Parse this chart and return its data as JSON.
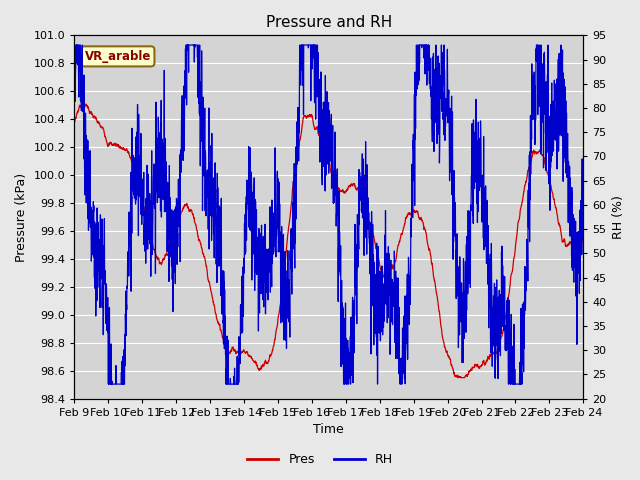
{
  "title": "Pressure and RH",
  "xlabel": "Time",
  "ylabel_left": "Pressure (kPa)",
  "ylabel_right": "RH (%)",
  "ylim_left": [
    98.4,
    101.0
  ],
  "ylim_right": [
    20,
    95
  ],
  "yticks_left": [
    98.4,
    98.6,
    98.8,
    99.0,
    99.2,
    99.4,
    99.6,
    99.8,
    100.0,
    100.2,
    100.4,
    100.6,
    100.8,
    101.0
  ],
  "yticks_right": [
    20,
    25,
    30,
    35,
    40,
    45,
    50,
    55,
    60,
    65,
    70,
    75,
    80,
    85,
    90,
    95
  ],
  "x_tick_labels": [
    "Feb 9",
    "Feb 10",
    "Feb 11",
    "Feb 12",
    "Feb 13",
    "Feb 14",
    "Feb 15",
    "Feb 16",
    "Feb 17",
    "Feb 18",
    "Feb 19",
    "Feb 20",
    "Feb 21",
    "Feb 22",
    "Feb 23",
    "Feb 24"
  ],
  "annotation_text": "VR_arable",
  "line_color_pres": "#cc0000",
  "line_color_rh": "#0000cc",
  "legend_label_pres": "Pres",
  "legend_label_rh": "RH",
  "fig_bg_color": "#e8e8e8",
  "plot_bg_color": "#d4d4d4",
  "grid_color": "#ffffff",
  "title_fontsize": 11,
  "axis_label_fontsize": 9,
  "tick_fontsize": 8,
  "legend_fontsize": 9,
  "n_days": 16,
  "pts_per_day": 144,
  "seed": 7
}
